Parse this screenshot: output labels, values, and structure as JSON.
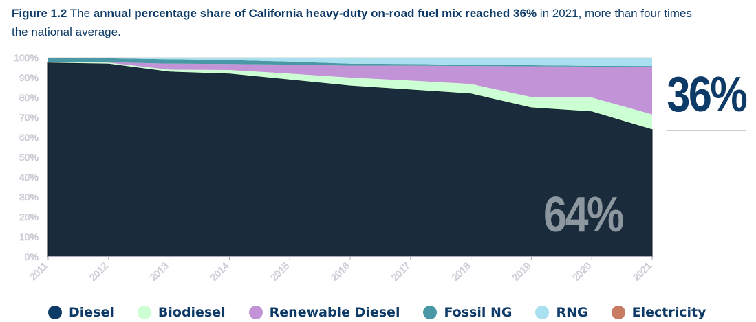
{
  "title": {
    "label": "Figure 1.2",
    "t1": "The",
    "bold": "annual percentage share of California heavy-duty on-road fuel mix reached 36%",
    "t2": "in 2021, more than four times the national average."
  },
  "callouts": {
    "alt_share": "36%",
    "diesel_share": "64%"
  },
  "chart_data": {
    "type": "area",
    "stacked": true,
    "x": [
      2011,
      2012,
      2013,
      2014,
      2015,
      2016,
      2017,
      2018,
      2019,
      2020,
      2021
    ],
    "ylim": [
      0,
      100
    ],
    "yticks": [
      "0%",
      "10%",
      "20%",
      "30%",
      "40%",
      "50%",
      "60%",
      "70%",
      "80%",
      "90%",
      "100%"
    ],
    "xticks": [
      "2011",
      "2012",
      "2013",
      "2014",
      "2015",
      "2016",
      "2017",
      "2018",
      "2019",
      "2020",
      "2021"
    ],
    "grid": false,
    "legend": "bottom",
    "series": [
      {
        "name": "Diesel",
        "color": "#1a2b3c",
        "legend_color": "#0d3a66",
        "values": [
          97.5,
          97,
          93,
          92,
          89,
          86,
          84,
          82,
          75,
          73,
          64
        ]
      },
      {
        "name": "Biodiesel",
        "color": "#ccffd4",
        "values": [
          0.3,
          0.5,
          1,
          1.8,
          3,
          4,
          4.5,
          4.8,
          5.2,
          7,
          7.5
        ]
      },
      {
        "name": "Renewable Diesel",
        "color": "#c293d6",
        "values": [
          0,
          0.2,
          3,
          3,
          4.5,
          6,
          7.5,
          9,
          15.5,
          15.5,
          24
        ]
      },
      {
        "name": "Fossil NG",
        "color": "#4a98a6",
        "values": [
          2,
          2,
          2.2,
          2,
          1.5,
          1,
          0.8,
          0.6,
          0.5,
          0.4,
          0.3
        ]
      },
      {
        "name": "RNG",
        "color": "#a8e0ef",
        "values": [
          0.2,
          0.3,
          0.8,
          1.2,
          2,
          3,
          3.2,
          3.6,
          3.8,
          4.1,
          4.2
        ]
      },
      {
        "name": "Electricity",
        "color": "#c97a63",
        "values": [
          0,
          0,
          0,
          0,
          0,
          0,
          0,
          0,
          0,
          0,
          0
        ]
      }
    ]
  }
}
